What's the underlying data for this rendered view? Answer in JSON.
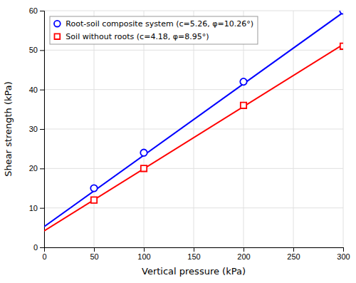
{
  "chart_data": {
    "type": "scatter",
    "xlabel": "Vertical pressure (kPa)",
    "ylabel": "Shear strength (kPa)",
    "xlim": [
      0,
      300
    ],
    "ylim": [
      0,
      60
    ],
    "xticks": [
      0,
      50,
      100,
      150,
      200,
      250,
      300
    ],
    "yticks": [
      0,
      10,
      20,
      30,
      40,
      50,
      60
    ],
    "grid": true,
    "legend": "upper left",
    "series": [
      {
        "type": "line",
        "line_style": "solid",
        "color": "#0000FF",
        "x": [
          0,
          300
        ],
        "values": [
          5.26,
          59.563
        ]
      },
      {
        "type": "line",
        "line_style": "solid",
        "color": "#FF0000",
        "x": [
          0,
          300
        ],
        "values": [
          4.18,
          51.427
        ]
      },
      {
        "type": "scatter",
        "marker": "circle",
        "name": "Root-soil composite system (c=5.26, φ=10.26°)",
        "color": "#0000FF",
        "x": [
          50,
          100,
          200,
          300
        ],
        "values": [
          15,
          24,
          42,
          60
        ]
      },
      {
        "type": "scatter",
        "marker": "square",
        "name": "Soil without roots (c=4.18, φ=8.95°)",
        "color": "#FF0000",
        "x": [
          50,
          100,
          200,
          300
        ],
        "values": [
          12,
          20,
          36,
          51
        ]
      }
    ]
  }
}
